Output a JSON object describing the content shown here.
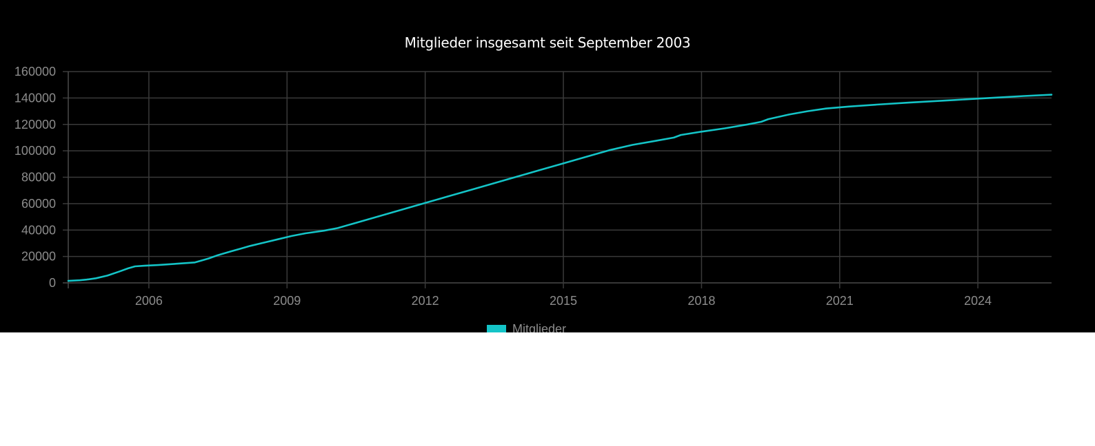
{
  "colors": {
    "background": "#000000",
    "series": "#14c4c7",
    "grid": "#3a3a3a",
    "tick_text": "#8c8c8c",
    "title_text": "#ffffff"
  },
  "chart_data": {
    "type": "line",
    "title": "Mitglieder insgesamt seit September 2003",
    "xlabel": "",
    "ylabel": "",
    "xlim": [
      2004.25,
      2025.6
    ],
    "ylim": [
      0,
      160000
    ],
    "x_ticks": [
      2006,
      2009,
      2012,
      2015,
      2018,
      2021,
      2024
    ],
    "y_ticks": [
      0,
      20000,
      40000,
      60000,
      80000,
      100000,
      120000,
      140000,
      160000
    ],
    "grid": true,
    "legend_position": "bottom",
    "series": [
      {
        "name": "Mitglieder",
        "x": [
          2004.25,
          2004.5,
          2004.65,
          2004.85,
          2005.1,
          2005.35,
          2005.55,
          2005.7,
          2005.9,
          2006.2,
          2006.6,
          2007.0,
          2007.3,
          2007.5,
          2007.6,
          2007.8,
          2008.0,
          2008.2,
          2008.5,
          2008.8,
          2009.1,
          2009.4,
          2009.8,
          2010.1,
          2010.5,
          2011.0,
          2011.5,
          2012.0,
          2012.5,
          2013.0,
          2013.5,
          2014.0,
          2014.5,
          2015.0,
          2015.5,
          2016.0,
          2016.5,
          2017.0,
          2017.4,
          2017.55,
          2018.0,
          2018.5,
          2019.0,
          2019.3,
          2019.45,
          2019.9,
          2020.3,
          2020.7,
          2021.2,
          2021.8,
          2022.5,
          2023.0,
          2023.5,
          2024.0,
          2024.5,
          2025.0,
          2025.6
        ],
        "values": [
          1500,
          2000,
          2500,
          3500,
          5500,
          8500,
          11000,
          12500,
          13000,
          13500,
          14500,
          15500,
          18500,
          21000,
          22000,
          24000,
          26000,
          28000,
          30500,
          33000,
          35500,
          37500,
          39500,
          41500,
          45500,
          50500,
          55500,
          60500,
          65500,
          70500,
          75500,
          80500,
          85500,
          90500,
          95500,
          100500,
          104500,
          107500,
          110000,
          112000,
          114500,
          117000,
          120000,
          122000,
          124000,
          127500,
          130000,
          132000,
          133500,
          135000,
          136500,
          137500,
          138500,
          139500,
          140500,
          141500,
          142500
        ]
      }
    ]
  }
}
